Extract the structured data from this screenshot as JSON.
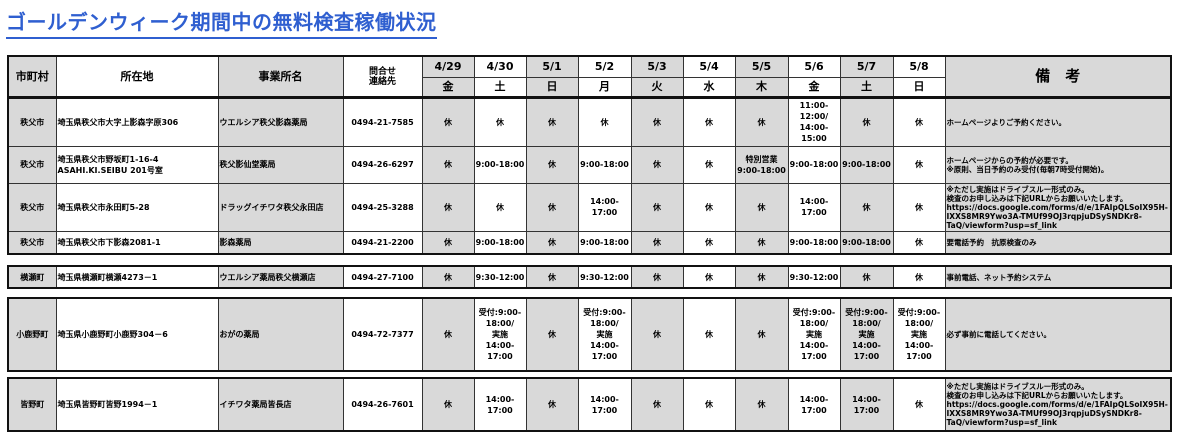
{
  "title": "ゴールデンウィーク期間中の無料検査稼働状況",
  "colors": {
    "title": "#2f5fd0",
    "shade": "#d9d9d9"
  },
  "header": {
    "municipality": "市町村",
    "address": "所在地",
    "office": "事業所名",
    "contact": "問合せ\n連絡先",
    "remarks": "備　考",
    "dates": [
      {
        "date": "4/29",
        "day": "金"
      },
      {
        "date": "4/30",
        "day": "土"
      },
      {
        "date": "5/1",
        "day": "日"
      },
      {
        "date": "5/2",
        "day": "月"
      },
      {
        "date": "5/3",
        "day": "火"
      },
      {
        "date": "5/4",
        "day": "水"
      },
      {
        "date": "5/5",
        "day": "木"
      },
      {
        "date": "5/6",
        "day": "金"
      },
      {
        "date": "5/7",
        "day": "土"
      },
      {
        "date": "5/8",
        "day": "日"
      }
    ]
  },
  "rows": [
    {
      "municipality": "秩父市",
      "address": "埼玉県秩父市大字上影森字原306",
      "office": "ウエルシア秩父影森薬局",
      "phone": "0494-21-7585",
      "schedule": [
        "休",
        "休",
        "休",
        "休",
        "休",
        "休",
        "休",
        "11:00-\n12:00/\n14:00-\n15:00",
        "休",
        "休"
      ],
      "remarks": "ホームページよりご予約ください。"
    },
    {
      "municipality": "秩父市",
      "address": "埼玉県秩父市野坂町1-16-4\nASAHI.KI.SEIBU 201号室",
      "office": "秩父影仙堂薬局",
      "phone": "0494-26-6297",
      "schedule": [
        "休",
        "9:00-18:00",
        "休",
        "9:00-18:00",
        "休",
        "休",
        "特別営業\n9:00-18:00",
        "9:00-18:00",
        "9:00-18:00",
        "休"
      ],
      "remarks": "ホームページからの予約が必要です。\n※原則、当日予約のみ受付(毎朝7時受付開始)。"
    },
    {
      "municipality": "秩父市",
      "address": "埼玉県秩父市永田町5-28",
      "office": "ドラッグイチワタ秩父永田店",
      "phone": "0494-25-3288",
      "schedule": [
        "休",
        "休",
        "休",
        "14:00-\n17:00",
        "休",
        "休",
        "休",
        "14:00-\n17:00",
        "休",
        "休"
      ],
      "remarks": "※ただし実施はドライブスルー形式のみ。\n検査のお申し込みは下記URLからお願いいたします。\nhttps://docs.google.com/forms/d/e/1FAIpQLSoIX95H-IXXS8MR9Ywo3A-TMUf99OJ3rqpjuDSySNDKr8-TaQ/viewform?usp=sf_link"
    },
    {
      "municipality": "秩父市",
      "address": "埼玉県秩父市下影森2081-1",
      "office": "影森薬局",
      "phone": "0494-21-2200",
      "schedule": [
        "休",
        "9:00-18:00",
        "休",
        "9:00-18:00",
        "休",
        "休",
        "休",
        "9:00-18:00",
        "9:00-18:00",
        "休"
      ],
      "remarks": "要電話予約　抗原検査のみ"
    },
    {
      "municipality": "横瀬町",
      "address": "埼玉県横瀬町横瀬4273－1",
      "office": "ウエルシア薬局秩父横瀬店",
      "phone": "0494-27-7100",
      "schedule": [
        "休",
        "9:30-12:00",
        "休",
        "9:30-12:00",
        "休",
        "休",
        "休",
        "9:30-12:00",
        "休",
        "休"
      ],
      "remarks": "事前電話、ネット予約システム"
    },
    {
      "municipality": "小鹿野町",
      "address": "埼玉県小鹿野町小鹿野304－6",
      "office": "おがの薬局",
      "phone": "0494-72-7377",
      "schedule": [
        "休",
        "受付:9:00-\n18:00/\n実施\n14:00-\n17:00",
        "休",
        "受付:9:00-\n18:00/\n実施\n14:00-\n17:00",
        "休",
        "休",
        "休",
        "受付:9:00-\n18:00/\n実施\n14:00-\n17:00",
        "受付:9:00-\n18:00/\n実施\n14:00-\n17:00",
        "受付:9:00-\n18:00/\n実施\n14:00-\n17:00"
      ],
      "remarks": "必ず事前に電話してください。"
    },
    {
      "municipality": "皆野町",
      "address": "埼玉県皆野町皆野1994－1",
      "office": "イチワタ薬局皆長店",
      "phone": "0494-26-7601",
      "schedule": [
        "休",
        "14:00-\n17:00",
        "休",
        "14:00-\n17:00",
        "休",
        "休",
        "休",
        "14:00-\n17:00",
        "14:00-\n17:00",
        "休"
      ],
      "remarks": "※ただし実施はドライブスルー形式のみ。\n検査のお申し込みは下記URLからお願いいたします。\nhttps://docs.google.com/forms/d/e/1FAIpQLSoIX95H-IXXS8MR9Ywo3A-TMUf99OJ3rqpjuDSySNDKr8-TaQ/viewform?usp=sf_link"
    }
  ]
}
